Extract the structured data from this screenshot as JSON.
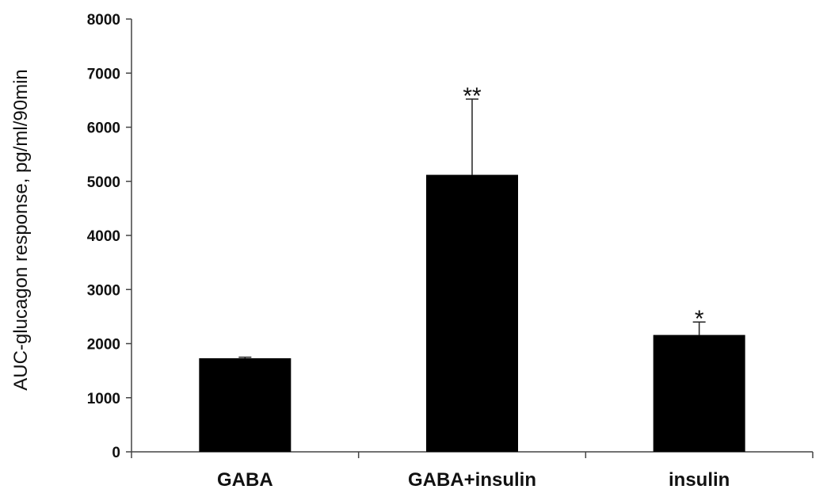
{
  "chart_data": {
    "type": "bar",
    "title": "",
    "xlabel": "",
    "ylabel": "AUC-glucagon response, pg/ml/90min",
    "ylim": [
      0,
      8000
    ],
    "yticks": [
      0,
      1000,
      2000,
      3000,
      4000,
      5000,
      6000,
      7000,
      8000
    ],
    "categories": [
      "GABA",
      "GABA+insulin",
      "insulin"
    ],
    "values": [
      1730,
      5120,
      2160
    ],
    "error_upper": [
      20,
      1400,
      240
    ],
    "annotations": [
      "",
      "**",
      "*"
    ],
    "bar_color": "#000000",
    "grid": false,
    "legend": "none"
  }
}
